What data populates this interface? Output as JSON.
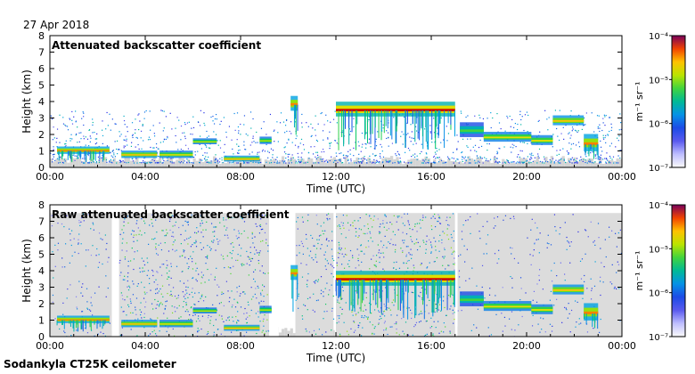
{
  "figure": {
    "date": "27 Apr 2018",
    "footer": "Sodankyla CT25K ceilometer"
  },
  "chart_data": [
    {
      "type": "heatmap",
      "title": "Attenuated backscatter coefficient",
      "xlabel": "Time (UTC)",
      "ylabel": "Height (km)",
      "xlim": [
        0,
        24
      ],
      "ylim": [
        0,
        8
      ],
      "xticks": [
        0,
        4,
        8,
        12,
        16,
        20,
        24
      ],
      "xticklabels": [
        "00:00",
        "04:00",
        "08:00",
        "12:00",
        "16:00",
        "20:00",
        "00:00"
      ],
      "yticks": [
        0,
        1,
        2,
        3,
        4,
        5,
        6,
        7,
        8
      ],
      "yticklabels": [
        "0",
        "1",
        "2",
        "3",
        "4",
        "5",
        "6",
        "7",
        "8"
      ],
      "colorbar": {
        "label": "m⁻¹ sr⁻¹",
        "range": [
          1e-07,
          0.0001
        ],
        "ticklabels": [
          "10⁻⁷",
          "10⁻⁶",
          "10⁻⁵",
          "10⁻⁴"
        ]
      },
      "features": [
        {
          "kind": "layer",
          "start": 0.3,
          "end": 2.5,
          "height": 1.0,
          "thickness": 0.15,
          "intensity": 0.85
        },
        {
          "kind": "layer",
          "start": 3.0,
          "end": 4.5,
          "height": 0.75,
          "thickness": 0.15,
          "intensity": 0.8
        },
        {
          "kind": "layer",
          "start": 4.6,
          "end": 6.0,
          "height": 0.75,
          "thickness": 0.15,
          "intensity": 0.75
        },
        {
          "kind": "layer",
          "start": 6.0,
          "end": 7.0,
          "height": 1.55,
          "thickness": 0.12,
          "intensity": 0.7
        },
        {
          "kind": "layer",
          "start": 7.3,
          "end": 8.8,
          "height": 0.5,
          "thickness": 0.12,
          "intensity": 0.8
        },
        {
          "kind": "layer",
          "start": 8.8,
          "end": 9.3,
          "height": 1.6,
          "thickness": 0.15,
          "intensity": 0.7
        },
        {
          "kind": "layer",
          "start": 10.1,
          "end": 10.4,
          "height": 3.8,
          "thickness": 0.3,
          "intensity": 0.85
        },
        {
          "kind": "layer",
          "start": 12.0,
          "end": 17.0,
          "height": 3.45,
          "thickness": 0.3,
          "intensity": 0.95
        },
        {
          "kind": "layer",
          "start": 17.2,
          "end": 18.2,
          "height": 2.2,
          "thickness": 0.3,
          "intensity": 0.6
        },
        {
          "kind": "layer",
          "start": 18.2,
          "end": 20.2,
          "height": 1.8,
          "thickness": 0.2,
          "intensity": 0.75
        },
        {
          "kind": "layer",
          "start": 20.2,
          "end": 21.1,
          "height": 1.6,
          "thickness": 0.2,
          "intensity": 0.75
        },
        {
          "kind": "layer",
          "start": 21.1,
          "end": 22.4,
          "height": 2.8,
          "thickness": 0.2,
          "intensity": 0.8
        },
        {
          "kind": "layer",
          "start": 22.4,
          "end": 23.0,
          "height": 1.4,
          "thickness": 0.35,
          "intensity": 0.85
        }
      ]
    },
    {
      "type": "heatmap",
      "title": "Raw attenuated backscatter coefficient",
      "xlabel": "Time (UTC)",
      "ylabel": "Height (km)",
      "xlim": [
        0,
        24
      ],
      "ylim": [
        0,
        8
      ],
      "xticks": [
        0,
        4,
        8,
        12,
        16,
        20,
        24
      ],
      "xticklabels": [
        "00:00",
        "04:00",
        "08:00",
        "12:00",
        "16:00",
        "20:00",
        "00:00"
      ],
      "yticks": [
        0,
        1,
        2,
        3,
        4,
        5,
        6,
        7,
        8
      ],
      "yticklabels": [
        "0",
        "1",
        "2",
        "3",
        "4",
        "5",
        "6",
        "7",
        "8"
      ],
      "colorbar": {
        "label": "m⁻¹ sr⁻¹",
        "range": [
          1e-07,
          0.0001
        ],
        "ticklabels": [
          "10⁻⁷",
          "10⁻⁶",
          "10⁻⁵",
          "10⁻⁴"
        ]
      },
      "noise_periods": [
        {
          "start": 0.0,
          "end": 2.6,
          "density": 0.25
        },
        {
          "start": 2.9,
          "end": 9.2,
          "density": 0.6
        },
        {
          "start": 10.3,
          "end": 11.9,
          "density": 0.45
        },
        {
          "start": 12.0,
          "end": 17.0,
          "density": 0.65
        },
        {
          "start": 17.1,
          "end": 24.0,
          "density": 0.2
        }
      ],
      "gaps": [
        {
          "start": 2.6,
          "end": 2.9
        },
        {
          "start": 9.2,
          "end": 9.6
        },
        {
          "start": 11.95,
          "end": 12.0
        },
        {
          "start": 17.0,
          "end": 17.1
        }
      ],
      "features": [
        {
          "kind": "layer",
          "start": 0.3,
          "end": 2.5,
          "height": 1.0,
          "thickness": 0.15,
          "intensity": 0.85
        },
        {
          "kind": "layer",
          "start": 3.0,
          "end": 4.5,
          "height": 0.75,
          "thickness": 0.15,
          "intensity": 0.8
        },
        {
          "kind": "layer",
          "start": 4.6,
          "end": 6.0,
          "height": 0.75,
          "thickness": 0.15,
          "intensity": 0.75
        },
        {
          "kind": "layer",
          "start": 6.0,
          "end": 7.0,
          "height": 1.55,
          "thickness": 0.12,
          "intensity": 0.7
        },
        {
          "kind": "layer",
          "start": 7.3,
          "end": 8.8,
          "height": 0.5,
          "thickness": 0.12,
          "intensity": 0.8
        },
        {
          "kind": "layer",
          "start": 8.8,
          "end": 9.3,
          "height": 1.6,
          "thickness": 0.15,
          "intensity": 0.7
        },
        {
          "kind": "layer",
          "start": 10.1,
          "end": 10.4,
          "height": 3.8,
          "thickness": 0.3,
          "intensity": 0.85
        },
        {
          "kind": "layer",
          "start": 12.0,
          "end": 17.0,
          "height": 3.45,
          "thickness": 0.3,
          "intensity": 0.95
        },
        {
          "kind": "layer",
          "start": 17.2,
          "end": 18.2,
          "height": 2.2,
          "thickness": 0.3,
          "intensity": 0.6
        },
        {
          "kind": "layer",
          "start": 18.2,
          "end": 20.2,
          "height": 1.8,
          "thickness": 0.2,
          "intensity": 0.75
        },
        {
          "kind": "layer",
          "start": 20.2,
          "end": 21.1,
          "height": 1.6,
          "thickness": 0.2,
          "intensity": 0.75
        },
        {
          "kind": "layer",
          "start": 21.1,
          "end": 22.4,
          "height": 2.8,
          "thickness": 0.2,
          "intensity": 0.8
        },
        {
          "kind": "layer",
          "start": 22.4,
          "end": 23.0,
          "height": 1.4,
          "thickness": 0.35,
          "intensity": 0.85
        }
      ]
    }
  ]
}
